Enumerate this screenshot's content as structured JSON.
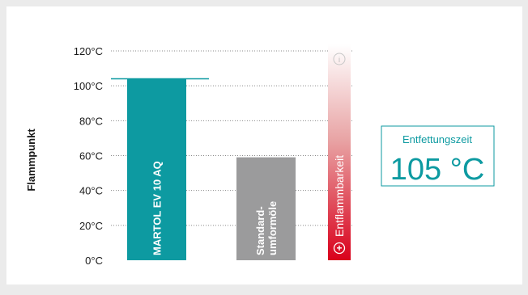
{
  "chart_data": {
    "type": "bar",
    "ylabel": "Flammpunkt",
    "ylim": [
      0,
      120
    ],
    "y_ticks": [
      0,
      20,
      40,
      60,
      80,
      100,
      120
    ],
    "y_tick_labels": [
      "0°C",
      "20°C",
      "40°C",
      "60°C",
      "80°C",
      "100°C",
      "120°C"
    ],
    "grid": "dotted horizontal",
    "categories": [
      "MARTOL EV 10 AQ",
      "Standard-umformöle"
    ],
    "category_label_lines": [
      [
        "MARTOL EV 10 AQ"
      ],
      [
        "Standard-",
        "umformöle"
      ]
    ],
    "values": [
      104,
      59
    ],
    "colors": [
      "#0d9aa1",
      "#9b9b9c"
    ],
    "reference_line": {
      "value": 104,
      "color": "#0d9aa1"
    },
    "gradient_bar": {
      "label": "Entflammbarkeit",
      "top_symbol": "i",
      "bottom_symbol": "+",
      "colors": [
        "#ffffff",
        "#e8a2a3",
        "#d9001b"
      ]
    },
    "callout": {
      "title": "Entfettungszeit",
      "value": "105 °C",
      "color": "#0d9aa1"
    }
  }
}
